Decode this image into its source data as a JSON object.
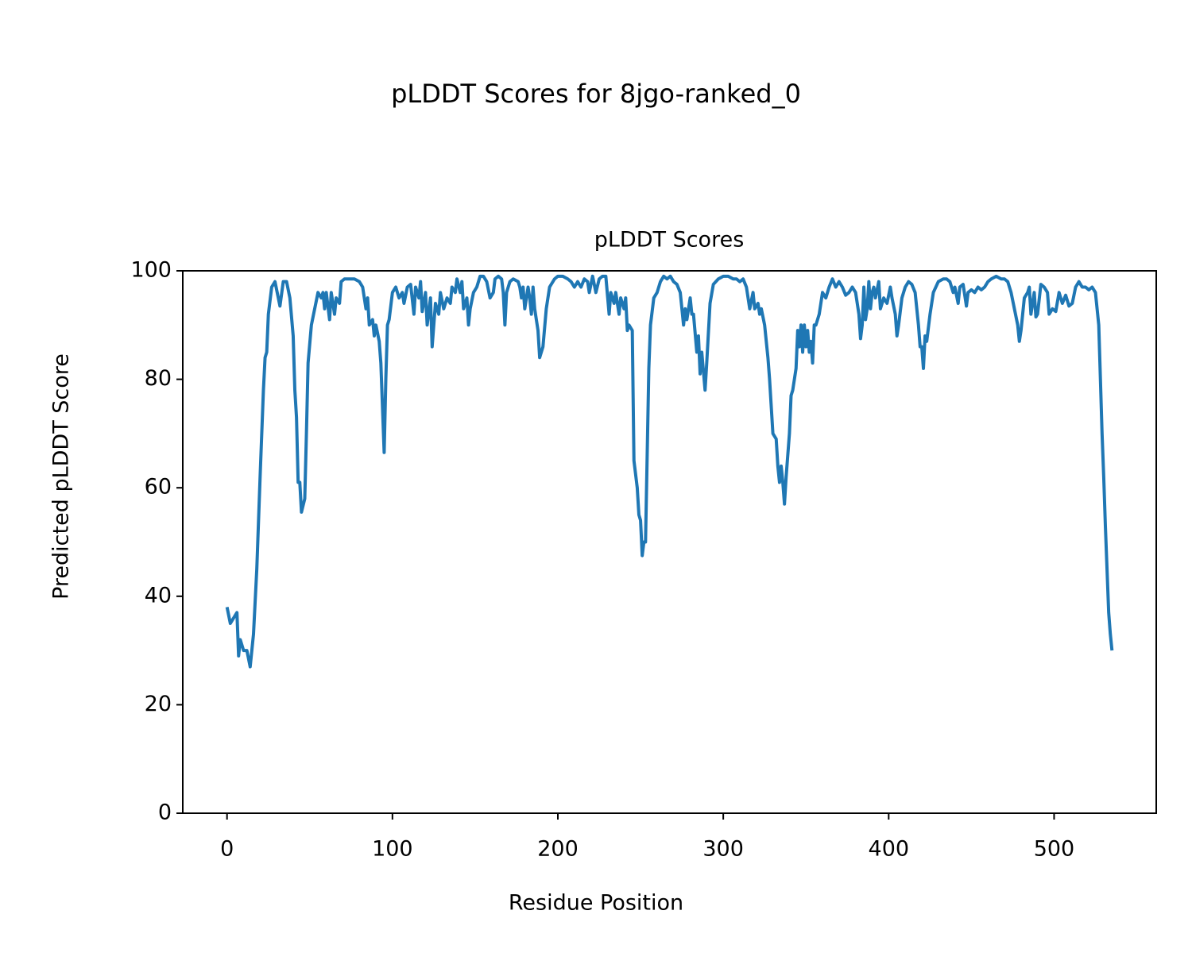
{
  "chart_data": {
    "type": "line",
    "title": "pLDDT Scores for 8jgo-ranked_0",
    "subtitle": "pLDDT Scores",
    "x_label": "Residue Position",
    "y_label": "Predicted pLDDT Score",
    "xlim": [
      -26.75,
      561.75
    ],
    "ylim": [
      0,
      100
    ],
    "xticks": [
      0,
      100,
      200,
      300,
      400,
      500
    ],
    "yticks": [
      0,
      20,
      40,
      60,
      80,
      100
    ],
    "grid": false,
    "x": [
      0,
      2,
      4,
      6,
      7,
      8,
      10,
      12,
      14,
      16,
      18,
      20,
      22,
      23,
      24,
      25,
      27,
      29,
      31,
      32,
      34,
      36,
      38,
      40,
      41,
      42,
      43,
      44,
      45,
      47,
      48,
      49,
      51,
      53,
      55,
      57,
      58,
      59,
      60,
      62,
      63,
      64,
      65,
      66,
      68,
      69,
      71,
      75,
      77,
      80,
      82,
      84,
      85,
      86,
      88,
      89,
      90,
      92,
      93,
      95,
      96,
      97,
      98,
      100,
      102,
      104,
      106,
      107,
      109,
      111,
      113,
      114,
      116,
      117,
      118,
      120,
      121,
      123,
      124,
      126,
      128,
      129,
      131,
      133,
      135,
      136,
      138,
      139,
      141,
      142,
      143,
      145,
      146,
      147,
      149,
      151,
      153,
      155,
      157,
      159,
      161,
      162,
      164,
      166,
      167,
      168,
      169,
      171,
      173,
      176,
      177,
      178,
      179,
      180,
      182,
      183,
      184,
      185,
      186,
      188,
      189,
      191,
      193,
      195,
      198,
      200,
      203,
      206,
      208,
      210,
      212,
      214,
      216,
      218,
      219,
      221,
      223,
      225,
      227,
      229,
      231,
      232,
      234,
      235,
      237,
      238,
      240,
      241,
      242,
      243,
      245,
      246,
      248,
      249,
      250,
      251,
      252,
      253,
      254,
      255,
      256,
      258,
      260,
      262,
      264,
      266,
      268,
      270,
      272,
      274,
      276,
      277,
      278,
      280,
      281,
      282,
      284,
      285,
      286,
      287,
      289,
      290,
      292,
      294,
      297,
      300,
      303,
      306,
      308,
      310,
      312,
      314,
      316,
      318,
      319,
      321,
      322,
      323,
      325,
      327,
      328,
      330,
      332,
      333,
      334,
      335,
      336,
      337,
      338,
      340,
      341,
      342,
      344,
      345,
      346,
      347,
      348,
      349,
      350,
      351,
      352,
      353,
      354,
      355,
      356,
      358,
      360,
      362,
      364,
      366,
      368,
      370,
      372,
      374,
      376,
      378,
      380,
      382,
      383,
      384,
      385,
      386,
      387,
      388,
      389,
      390,
      391,
      392,
      394,
      395,
      397,
      399,
      401,
      402,
      404,
      405,
      406,
      408,
      410,
      412,
      414,
      416,
      418,
      419,
      420,
      421,
      422,
      423,
      425,
      427,
      430,
      433,
      435,
      437,
      439,
      440,
      442,
      443,
      445,
      447,
      448,
      450,
      452,
      454,
      456,
      458,
      460,
      462,
      465,
      468,
      470,
      472,
      474,
      476,
      478,
      479,
      480,
      482,
      484,
      485,
      486,
      488,
      489,
      490,
      492,
      494,
      496,
      497,
      499,
      501,
      503,
      505,
      507,
      509,
      511,
      513,
      515,
      517,
      519,
      521,
      523,
      525,
      527,
      528,
      529,
      530,
      531,
      532,
      533,
      534,
      535
    ],
    "series": [
      {
        "name": "pLDDT",
        "color": "#1f77b4",
        "values": [
          38,
          35,
          36,
          37,
          29,
          32,
          30,
          30,
          27,
          33,
          45,
          62,
          78,
          84,
          85,
          92,
          97,
          98,
          95,
          93.5,
          98,
          98,
          95,
          88,
          78,
          73,
          61,
          61,
          55.5,
          58,
          70,
          83,
          90,
          93,
          96,
          95,
          96,
          93,
          96,
          91,
          96,
          94,
          92,
          95,
          94,
          98,
          98.5,
          98.5,
          98.5,
          98,
          97,
          93,
          95,
          90,
          91,
          88,
          90,
          87,
          83,
          66.5,
          80,
          90,
          91,
          96,
          97,
          95,
          96,
          94,
          97,
          97.5,
          92,
          97,
          95,
          98,
          92.5,
          96,
          90,
          95,
          86,
          94,
          92,
          96,
          93,
          95,
          94,
          97,
          96,
          98.5,
          96,
          98,
          93,
          95,
          90,
          93,
          96,
          97,
          99,
          99,
          98,
          95,
          96,
          98.5,
          99,
          98.5,
          96,
          90,
          96,
          98,
          98.5,
          98,
          97,
          95,
          97,
          93,
          97,
          95,
          92,
          97,
          93,
          89,
          84,
          86,
          93,
          97,
          98.5,
          99,
          99,
          98.5,
          98,
          97,
          98,
          97,
          98.5,
          98,
          96,
          99,
          96,
          98.5,
          99,
          99,
          92,
          96,
          94,
          96,
          92,
          95,
          93,
          95,
          89,
          90,
          89,
          65,
          60,
          55,
          54,
          47.5,
          50,
          50,
          66,
          82,
          90,
          95,
          96,
          98,
          99,
          98.5,
          99,
          98,
          97.5,
          96,
          90,
          93,
          91,
          95,
          92,
          92,
          85,
          88,
          81,
          85,
          78,
          83,
          94,
          97.5,
          98.5,
          99,
          99,
          98.5,
          98.5,
          98,
          98.5,
          97,
          93,
          96,
          93,
          94,
          92,
          93,
          90,
          84,
          80,
          70,
          69,
          64,
          61,
          64,
          61,
          57,
          62,
          70,
          77,
          78,
          82,
          89,
          86,
          90,
          85,
          90,
          86,
          89,
          85,
          87,
          83,
          90,
          90,
          92,
          96,
          95,
          97,
          98.5,
          97,
          98,
          97,
          95.5,
          96,
          97,
          96,
          92,
          87.5,
          90,
          97,
          91,
          93,
          98,
          93,
          96,
          97,
          95,
          98,
          93,
          95,
          94,
          97,
          95,
          92,
          88,
          90,
          95,
          97,
          98,
          97.5,
          96,
          90,
          86,
          86,
          82,
          88,
          87,
          92,
          96,
          98,
          98.5,
          98.5,
          98,
          96,
          97,
          94,
          97,
          97.5,
          93.5,
          96,
          96.5,
          96,
          97,
          96.5,
          97,
          98,
          98.5,
          99,
          98.5,
          98.5,
          98,
          96,
          93,
          90,
          87,
          89,
          95,
          96,
          97,
          92,
          96,
          91.5,
          92,
          97.5,
          97,
          96,
          92,
          93,
          92.5,
          96,
          94,
          95.5,
          93.5,
          94,
          97,
          98,
          97,
          97,
          96.5,
          97,
          96,
          90,
          80,
          70,
          62,
          53,
          45,
          37,
          33,
          30
        ]
      }
    ]
  }
}
